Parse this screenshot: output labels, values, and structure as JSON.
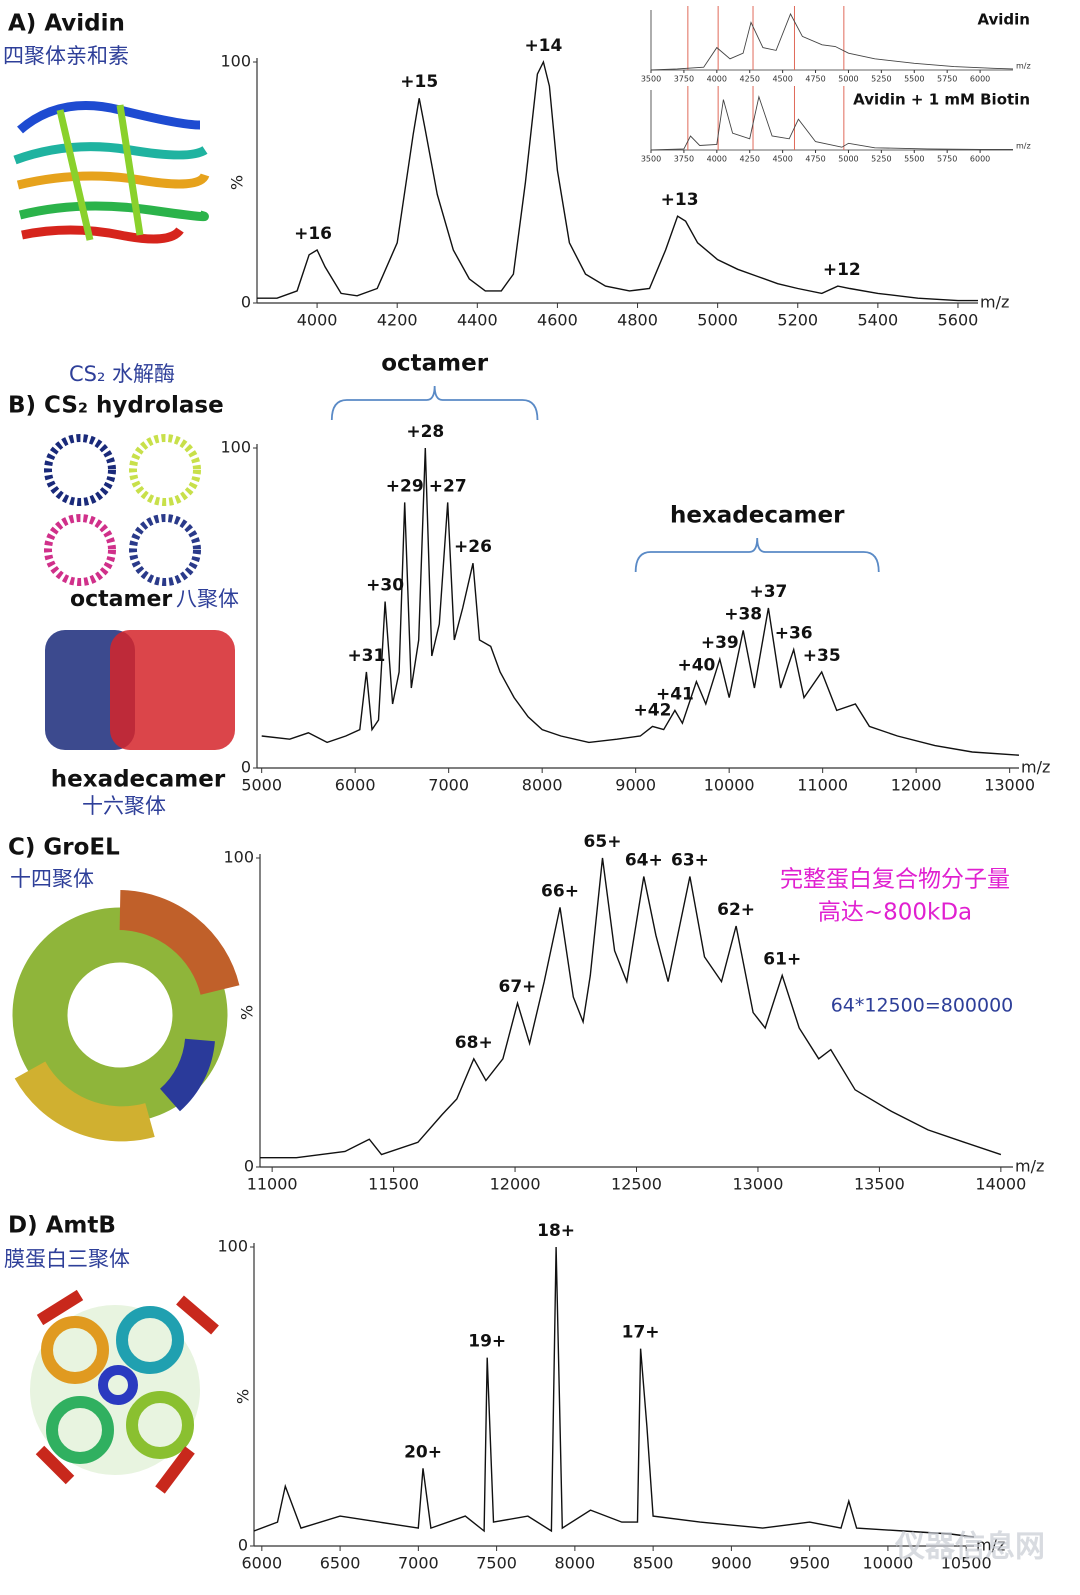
{
  "chart_data": [
    {
      "type": "line",
      "panel_title": "A) Avidin",
      "panel_subtitle": "四聚体亲和素",
      "xlabel": "m/z",
      "ylabel": "%",
      "color": "#111111",
      "x": [
        3850,
        3900,
        3950,
        3980,
        4000,
        4020,
        4060,
        4100,
        4150,
        4200,
        4240,
        4255,
        4270,
        4300,
        4340,
        4380,
        4420,
        4460,
        4490,
        4520,
        4550,
        4565,
        4580,
        4600,
        4630,
        4670,
        4720,
        4780,
        4830,
        4870,
        4900,
        4920,
        4950,
        5000,
        5050,
        5100,
        5150,
        5200,
        5260,
        5300,
        5330,
        5400,
        5500,
        5600,
        5650
      ],
      "values": [
        2,
        2,
        5,
        20,
        22,
        15,
        4,
        3,
        6,
        25,
        70,
        85,
        72,
        45,
        22,
        10,
        5,
        5,
        12,
        50,
        95,
        100,
        90,
        55,
        25,
        12,
        7,
        5,
        6,
        22,
        36,
        34,
        25,
        18,
        14,
        11,
        8,
        6,
        4,
        7,
        6,
        4,
        2,
        1,
        1
      ],
      "xlim": [
        3850,
        5650
      ],
      "xticks": [
        4000,
        4200,
        4400,
        4600,
        4800,
        5000,
        5200,
        5400,
        5600
      ],
      "ylim": [
        0,
        100
      ],
      "yticks": [
        0,
        100
      ],
      "annotations": [
        {
          "text": "+16",
          "x": 3990,
          "y": 22
        },
        {
          "text": "+15",
          "x": 4255,
          "y": 85
        },
        {
          "text": "+14",
          "x": 4565,
          "y": 100
        },
        {
          "text": "+13",
          "x": 4905,
          "y": 36
        },
        {
          "text": "+12",
          "x": 5310,
          "y": 7
        }
      ]
    },
    {
      "type": "line",
      "xlabel": "m/z",
      "xlim": [
        3500,
        6250
      ],
      "xticks": [
        3500,
        3750,
        4000,
        4250,
        4500,
        4750,
        5000,
        5250,
        5500,
        5750,
        6000
      ],
      "ylim": [
        0,
        100
      ],
      "reference_lines": [
        3780,
        4010,
        4275,
        4590,
        4965
      ],
      "reference_color": "#e06a5a",
      "series": [
        {
          "name": "Avidin",
          "color": "#444444",
          "x": [
            3500,
            3700,
            3900,
            4000,
            4100,
            4200,
            4260,
            4350,
            4450,
            4560,
            4650,
            4800,
            4900,
            5000,
            5200,
            5500,
            5800,
            6100,
            6250
          ],
          "values": [
            0,
            2,
            5,
            40,
            20,
            30,
            85,
            40,
            35,
            100,
            60,
            45,
            42,
            30,
            20,
            12,
            6,
            3,
            2
          ]
        },
        {
          "name": "Avidin + 1 mM Biotin",
          "color": "#444444",
          "x": [
            3500,
            3750,
            3800,
            3870,
            4000,
            4050,
            4120,
            4250,
            4320,
            4420,
            4550,
            4620,
            4750,
            4950,
            5000,
            5200,
            5600,
            6000,
            6250
          ],
          "values": [
            0,
            2,
            25,
            8,
            10,
            90,
            30,
            20,
            95,
            25,
            20,
            55,
            15,
            5,
            12,
            4,
            2,
            1,
            1
          ]
        }
      ]
    },
    {
      "type": "line",
      "panel_title": "B) CS₂ hydrolase",
      "panel_subtitle": "CS₂ 水解酶",
      "structure_labels": [
        "octamer",
        "八聚体",
        "hexadecamer",
        "十六聚体"
      ],
      "xlabel": "m/z",
      "color": "#111111",
      "x": [
        5000,
        5300,
        5500,
        5700,
        5900,
        6050,
        6120,
        6180,
        6250,
        6320,
        6400,
        6470,
        6530,
        6600,
        6680,
        6750,
        6820,
        6900,
        6990,
        7060,
        7150,
        7260,
        7330,
        7450,
        7550,
        7700,
        7850,
        8000,
        8200,
        8500,
        8800,
        9050,
        9180,
        9300,
        9420,
        9500,
        9650,
        9750,
        9900,
        10000,
        10150,
        10270,
        10420,
        10550,
        10690,
        10800,
        10990,
        11150,
        11350,
        11500,
        11800,
        12200,
        12600,
        13100
      ],
      "values": [
        10,
        9,
        11,
        8,
        10,
        12,
        30,
        12,
        15,
        52,
        20,
        30,
        83,
        25,
        40,
        100,
        35,
        45,
        83,
        40,
        50,
        64,
        40,
        38,
        30,
        22,
        16,
        12,
        10,
        8,
        9,
        10,
        13,
        12,
        18,
        14,
        27,
        20,
        34,
        22,
        43,
        25,
        50,
        25,
        37,
        22,
        30,
        18,
        20,
        13,
        10,
        7,
        5,
        4
      ],
      "xlim": [
        4950,
        13100
      ],
      "xticks": [
        5000,
        6000,
        7000,
        8000,
        9000,
        10000,
        11000,
        12000,
        13000
      ],
      "ylim": [
        0,
        100
      ],
      "yticks": [
        0,
        100
      ],
      "groups": [
        {
          "label": "octamer",
          "x": [
            5750,
            7950
          ]
        },
        {
          "label": "hexadecamer",
          "x": [
            9000,
            11600
          ]
        }
      ],
      "group_color": "#5a8ac6",
      "annotations": [
        {
          "text": "+31",
          "x": 6120,
          "y": 30
        },
        {
          "text": "+30",
          "x": 6320,
          "y": 52
        },
        {
          "text": "+29",
          "x": 6530,
          "y": 83
        },
        {
          "text": "+28",
          "x": 6750,
          "y": 100
        },
        {
          "text": "+27",
          "x": 6990,
          "y": 83
        },
        {
          "text": "+26",
          "x": 7260,
          "y": 64
        },
        {
          "text": "+42",
          "x": 9180,
          "y": 13
        },
        {
          "text": "+41",
          "x": 9420,
          "y": 18
        },
        {
          "text": "+40",
          "x": 9650,
          "y": 27
        },
        {
          "text": "+39",
          "x": 9900,
          "y": 34
        },
        {
          "text": "+38",
          "x": 10150,
          "y": 43
        },
        {
          "text": "+37",
          "x": 10420,
          "y": 50
        },
        {
          "text": "+36",
          "x": 10690,
          "y": 37
        },
        {
          "text": "+35",
          "x": 10990,
          "y": 30
        }
      ]
    },
    {
      "type": "line",
      "panel_title": "C) GroEL",
      "panel_subtitle": "十四聚体",
      "notes": [
        "完整蛋白复合物分子量",
        "高达~800kDa",
        "64*12500=800000"
      ],
      "xlabel": "m/z",
      "ylabel": "%",
      "color": "#111111",
      "x": [
        10950,
        11100,
        11300,
        11400,
        11450,
        11600,
        11700,
        11760,
        11830,
        11880,
        11950,
        12010,
        12060,
        12120,
        12185,
        12240,
        12280,
        12310,
        12360,
        12410,
        12460,
        12530,
        12580,
        12630,
        12720,
        12780,
        12850,
        12910,
        12980,
        13030,
        13100,
        13170,
        13250,
        13300,
        13400,
        13550,
        13700,
        13850,
        14000
      ],
      "values": [
        3,
        3,
        5,
        9,
        4,
        8,
        17,
        22,
        35,
        28,
        35,
        53,
        40,
        60,
        84,
        55,
        47,
        62,
        100,
        70,
        60,
        94,
        75,
        60,
        94,
        68,
        60,
        78,
        50,
        45,
        62,
        45,
        35,
        38,
        25,
        18,
        12,
        8,
        4
      ],
      "xlim": [
        10950,
        14050
      ],
      "xticks": [
        11000,
        11500,
        12000,
        12500,
        13000,
        13500,
        14000
      ],
      "ylim": [
        0,
        100
      ],
      "yticks": [
        0,
        100
      ],
      "annotations": [
        {
          "text": "68+",
          "x": 11830,
          "y": 35
        },
        {
          "text": "67+",
          "x": 12010,
          "y": 53
        },
        {
          "text": "66+",
          "x": 12185,
          "y": 84
        },
        {
          "text": "65+",
          "x": 12360,
          "y": 100
        },
        {
          "text": "64+",
          "x": 12530,
          "y": 94
        },
        {
          "text": "63+",
          "x": 12720,
          "y": 94
        },
        {
          "text": "62+",
          "x": 12910,
          "y": 78
        },
        {
          "text": "61+",
          "x": 13100,
          "y": 62
        }
      ]
    },
    {
      "type": "line",
      "panel_title": "D) AmtB",
      "panel_subtitle": "膜蛋白三聚体",
      "watermark": "仪器信息网",
      "xlabel": "m/z",
      "ylabel": "%",
      "color": "#111111",
      "x": [
        5950,
        6100,
        6150,
        6250,
        6500,
        6750,
        7000,
        7030,
        7080,
        7300,
        7420,
        7440,
        7480,
        7700,
        7850,
        7880,
        7920,
        8100,
        8300,
        8400,
        8420,
        8460,
        8500,
        8800,
        9200,
        9500,
        9700,
        9750,
        9800,
        10100,
        10400,
        10550
      ],
      "values": [
        5,
        8,
        20,
        6,
        10,
        8,
        6,
        26,
        6,
        10,
        5,
        63,
        8,
        10,
        5,
        100,
        6,
        12,
        8,
        8,
        66,
        40,
        10,
        8,
        6,
        8,
        6,
        15,
        6,
        5,
        4,
        3
      ],
      "xlim": [
        5950,
        10550
      ],
      "xticks": [
        6000,
        6500,
        7000,
        7500,
        8000,
        8500,
        9000,
        9500,
        10000,
        10500
      ],
      "ylim": [
        0,
        100
      ],
      "yticks": [
        0,
        100
      ],
      "annotations": [
        {
          "text": "20+",
          "x": 7030,
          "y": 26
        },
        {
          "text": "19+",
          "x": 7440,
          "y": 63
        },
        {
          "text": "18+",
          "x": 7880,
          "y": 100
        },
        {
          "text": "17+",
          "x": 8420,
          "y": 66
        }
      ]
    }
  ]
}
